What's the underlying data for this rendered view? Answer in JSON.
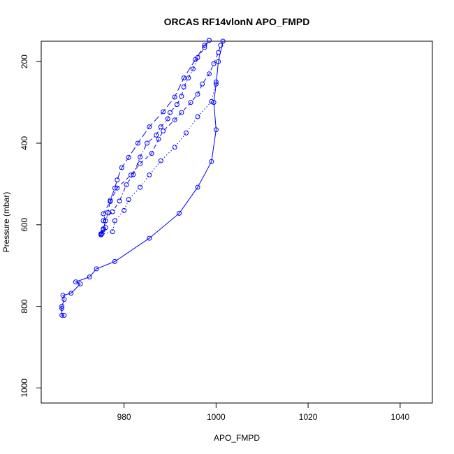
{
  "chart_data": {
    "type": "line",
    "title": "ORCAS RF14vlonN APO_FMPD",
    "xlabel": "APO_FMPD",
    "ylabel": "Pressure (mbar)",
    "xlim": [
      962,
      1047
    ],
    "ylim": [
      1037,
      150
    ],
    "y_reversed": true,
    "grid": false,
    "legend": "none",
    "x_ticks": [
      980,
      1000,
      1020,
      1040
    ],
    "y_ticks": [
      200,
      400,
      600,
      800,
      1000
    ],
    "series_color": "#0000ff",
    "series": [
      {
        "line_style": "solid",
        "points": [
          [
            967.0,
            822
          ],
          [
            966.5,
            822
          ],
          [
            966.5,
            805
          ],
          [
            966.5,
            800
          ],
          [
            967.0,
            783
          ],
          [
            966.7,
            773
          ],
          [
            968.5,
            768
          ],
          [
            970.5,
            745
          ],
          [
            969.5,
            740
          ],
          [
            972.5,
            728
          ],
          [
            974.0,
            708
          ],
          [
            978.0,
            690
          ],
          [
            985.5,
            633
          ],
          [
            992.0,
            572
          ],
          [
            996.0,
            508
          ],
          [
            999.0,
            445
          ],
          [
            1000.0,
            367
          ],
          [
            999.5,
            300
          ],
          [
            1000.0,
            255
          ],
          [
            1000.5,
            200
          ],
          [
            1001.5,
            150
          ]
        ]
      },
      {
        "line_style": "dashed",
        "points": [
          [
            975.0,
            622
          ],
          [
            975.5,
            610
          ],
          [
            976.0,
            590
          ],
          [
            975.5,
            573
          ],
          [
            977.0,
            543
          ],
          [
            978.5,
            510
          ],
          [
            981.5,
            478
          ],
          [
            983.5,
            450
          ],
          [
            986.0,
            425
          ],
          [
            987.5,
            390
          ],
          [
            988.5,
            370
          ],
          [
            991.0,
            343
          ],
          [
            992.5,
            325
          ],
          [
            994.5,
            300
          ],
          [
            996.0,
            280
          ],
          [
            997.0,
            255
          ],
          [
            998.5,
            230
          ],
          [
            999.5,
            205
          ],
          [
            1000.5,
            178
          ],
          [
            1001.0,
            160
          ]
        ]
      },
      {
        "line_style": "dotted",
        "points": [
          [
            975.0,
            623
          ],
          [
            977.5,
            617
          ],
          [
            978.0,
            590
          ],
          [
            980.0,
            565
          ],
          [
            981.0,
            538
          ],
          [
            983.5,
            508
          ],
          [
            985.5,
            478
          ],
          [
            988.0,
            443
          ],
          [
            991.0,
            410
          ],
          [
            993.5,
            375
          ],
          [
            996.0,
            335
          ],
          [
            999.0,
            298
          ],
          [
            1000.0,
            250
          ]
        ]
      },
      {
        "line_style": "dashdot",
        "points": [
          [
            975.2,
            622
          ],
          [
            976.0,
            607
          ],
          [
            975.5,
            590
          ],
          [
            977.5,
            568
          ],
          [
            979.0,
            542
          ],
          [
            980.5,
            502
          ],
          [
            982.0,
            477
          ],
          [
            983.5,
            434
          ],
          [
            985.0,
            400
          ],
          [
            987.0,
            380
          ],
          [
            988.0,
            360
          ],
          [
            989.5,
            340
          ],
          [
            990.0,
            325
          ],
          [
            991.5,
            305
          ],
          [
            992.5,
            285
          ],
          [
            993.0,
            262
          ],
          [
            994.0,
            240
          ],
          [
            995.0,
            218
          ],
          [
            996.0,
            190
          ],
          [
            997.5,
            165
          ],
          [
            998.5,
            148
          ]
        ]
      },
      {
        "line_style": "longdash",
        "points": [
          [
            975.0,
            625
          ],
          [
            975.5,
            612
          ],
          [
            976.5,
            570
          ],
          [
            977.0,
            540
          ],
          [
            978.0,
            510
          ],
          [
            978.5,
            490
          ],
          [
            979.5,
            460
          ],
          [
            981.0,
            435
          ],
          [
            983.0,
            400
          ],
          [
            985.5,
            360
          ],
          [
            988.5,
            323
          ],
          [
            991.0,
            287
          ],
          [
            993.0,
            240
          ],
          [
            995.5,
            195
          ],
          [
            997.5,
            160
          ],
          [
            998.5,
            148
          ]
        ]
      }
    ]
  }
}
